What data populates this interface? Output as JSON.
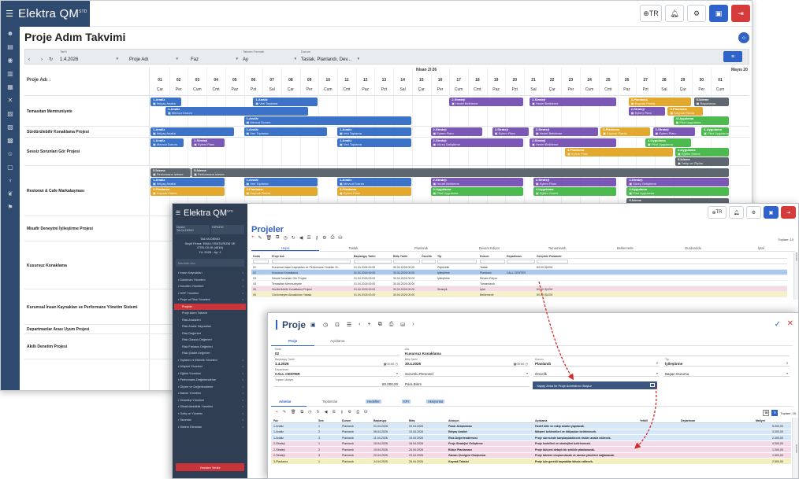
{
  "app": {
    "name": "Elektra QM",
    "sup": "STD"
  },
  "topbar": {
    "language": "TR"
  },
  "page_title": "Proje Adım Takvimi",
  "filters": {
    "date_label": "Tarih",
    "date_value": "1.4.2026",
    "project_label": "Proje Adı",
    "phase_label": "Faz",
    "calendar_label": "Takvim Formatı",
    "calendar_value": "Ay",
    "status_label": "Durum",
    "status_value": "Taslak, Planlandı, Dev..."
  },
  "gantt": {
    "column_header": "Proje Adı",
    "month_1": "Nisan 2026",
    "month_2": "Mayıs 20",
    "days": [
      "01",
      "02",
      "03",
      "04",
      "05",
      "06",
      "07",
      "08",
      "09",
      "10",
      "11",
      "12",
      "13",
      "14",
      "15",
      "16",
      "17",
      "18",
      "19",
      "20",
      "21",
      "22",
      "23",
      "24",
      "25",
      "26",
      "27",
      "28",
      "29",
      "30",
      "01"
    ],
    "dows": [
      "Çar",
      "Per",
      "Cum",
      "Cmt",
      "Paz",
      "Pzt",
      "Sal",
      "Çar",
      "Per",
      "Cum",
      "Cmt",
      "Paz",
      "Pzt",
      "Sal",
      "Çar",
      "Per",
      "Cum",
      "Cmt",
      "Paz",
      "Pzt",
      "Sal",
      "Çar",
      "Per",
      "Cum",
      "Cmt",
      "Paz",
      "Pzt",
      "Sal",
      "Çar",
      "Per",
      "Cum"
    ],
    "rows": [
      "Teması̇tan Memnuniyete",
      "Sürdürülebilir Konaklama Projesi",
      "Sessiz Sorunları Gör Projesi",
      "Restoran & Cafe Markalaşması",
      "Misafir Deneyimi İyileştirme Projesi",
      "Kusursuz Konaklama",
      "Kurumsal İnsan Kaynakları ve Performans Yönetim Sistemi",
      "Departmanlar Arası Uyum Projesi",
      "Akıllı Denetim Projesi"
    ],
    "bars": {
      "analiz": "1-Analiz",
      "strateji": "2-Strateji",
      "planlama": "3-Planlama",
      "uygulama": "4-Uygulama",
      "izleme": "5-İzleme",
      "sub_ihtiyac": "İhtiyaç Analizi",
      "sub_veri": "Veri Toplama",
      "sub_mevcut": "Mevcut Durum",
      "sub_hedef": "Hedef Belirleme",
      "sub_kaynak": "Kaynak Planla",
      "sub_eylem": "Eylem Planı",
      "sub_egitim": "Eğitim Süreci",
      "sub_takip": "Takip ve Ölçüm",
      "sub_perf": "Performans İzleme",
      "sub_rapor": "Raporlama",
      "sub_pilot": "Pilot Uygulama",
      "sub_surec": "Süreç Geliştirme"
    }
  },
  "win2": {
    "side": {
      "term_label": "Dönem",
      "term_value": "TALYA DEMO",
      "tenant_label": "TÜRKİYE",
      "company_lines": [
        "TALYA DEMO",
        "Seçili Firma: EMA LYRATURİZM VE",
        "OTELCİLİK (4616)",
        "Yıl: 2026 - Ay: 1"
      ],
      "search_placeholder": "Menüde Ara",
      "menu": [
        {
          "label": "İnsan Kaynakları",
          "sub": false
        },
        {
          "label": "Doküman Yönetimi",
          "sub": false
        },
        {
          "label": "Denetim Yönetimi",
          "sub": false
        },
        {
          "label": "DÖF Yönetimi",
          "sub": false
        },
        {
          "label": "Proje ve Risk Yönetimi",
          "sub": false
        },
        {
          "label": "Projeler",
          "sub": true,
          "active": true
        },
        {
          "label": "Proje Adım Takvimi",
          "sub": true
        },
        {
          "label": "Risk Analizleri",
          "sub": true
        },
        {
          "label": "Risk Analiz Sayısalları",
          "sub": true
        },
        {
          "label": "Risk Değerleri",
          "sub": true
        },
        {
          "label": "Risk Olasılık Değerleri",
          "sub": true
        },
        {
          "label": "Risk Frekans Değerleri",
          "sub": true
        },
        {
          "label": "Risk Şiddet Değerleri",
          "sub": true
        },
        {
          "label": "Toplantı ve Etkinlik Yönetimi",
          "sub": false
        },
        {
          "label": "Müşteri Yönetimi",
          "sub": false
        },
        {
          "label": "Eğitim Yönetimi",
          "sub": false
        },
        {
          "label": "Performans Değerlendirme",
          "sub": false
        },
        {
          "label": "Ölçme ve Değerlendirme",
          "sub": false
        },
        {
          "label": "Bakım Yönetimi",
          "sub": false
        },
        {
          "label": "Tedarikçi Yönetimi",
          "sub": false
        },
        {
          "label": "Sürdürülebilirlik Yönetimi",
          "sub": false
        },
        {
          "label": "Geliş ve Yönetim",
          "sub": false
        },
        {
          "label": "Tanımlar",
          "sub": false
        },
        {
          "label": "Sistem Ekranları",
          "sub": false
        }
      ],
      "exit_label": "Yeniden Yenile"
    },
    "title": "Projeler",
    "total": "Toplam: 10",
    "tabs": [
      "Hepsi",
      "Taslak",
      "Planlandı",
      "Devam Ediyor",
      "Tamamlandı",
      "Beklemede",
      "Durduruldu",
      "İptal"
    ],
    "columns": [
      "Kodu",
      "Proje Adı",
      "Başlangıç Tarihi",
      "Bitiş Tarihi",
      "Öncelik",
      "Tip",
      "Durum",
      "Departman",
      "Gerçekle Parametr"
    ],
    "rows": [
      {
        "code": "01",
        "name": "Kurumsal İnsan Kaynakları ve Performans Yönetim Si...",
        "start": "01.04.2026 00:00",
        "end": "30.04.2026 00:00",
        "priority": "",
        "type": "Ölçülebilir",
        "status": "Taslak",
        "dept": "",
        "param": "80,00 İŞLEM"
      },
      {
        "code": "02",
        "name": "Kusursuz Konaklama",
        "start": "01.04.2026 00:00",
        "end": "30.04.2026 00:00",
        "priority": "",
        "type": "İyileştirme",
        "status": "Planlandı",
        "dept": "CALL CENTER",
        "param": ""
      },
      {
        "code": "03",
        "name": "Sessiz Sorunları Gör Projesi",
        "start": "01.04.2026 00:00",
        "end": "30.04.2026 00:00",
        "priority": "",
        "type": "İyileştirme",
        "status": "Devam Ediyor",
        "dept": "",
        "param": ""
      },
      {
        "code": "04",
        "name": "Temasitan Memnuniyete",
        "start": "01.04.2026 00:00",
        "end": "30.04.2026 00:00",
        "priority": "",
        "type": "",
        "status": "Tamamlandı",
        "dept": "",
        "param": ""
      },
      {
        "code": "05",
        "name": "Sürdürülebilir Konaklama Projesi",
        "start": "01.04.2026 00:00",
        "end": "30.04.2026 00:00",
        "priority": "",
        "type": "Stratejik",
        "status": "İptal",
        "dept": "",
        "param": "80,00 İŞLEM"
      },
      {
        "code": "06",
        "name": "Görünmeyen Aksaklıkları Yakala",
        "start": "01.04.2026 00:00",
        "end": "30.04.2026 00:00",
        "priority": "",
        "type": "",
        "status": "Beklemede",
        "dept": "",
        "param": "80,00 İŞLEM"
      }
    ],
    "vscroll_label": "Kolonlar"
  },
  "win3": {
    "title": "Proje",
    "tabs": [
      "Proje",
      "Açıklama"
    ],
    "fields": {
      "code_label": "Kodu",
      "code_value": "02",
      "name_label": "Adı",
      "name_value": "Kusursuz Konaklama",
      "start_label": "Başlangıç Tarihi",
      "start_value": "1.4.2026",
      "start_time": "00:00",
      "end_label": "Bitiş Tarihi",
      "end_value": "30.4.2026",
      "end_time": "00:00",
      "status_label": "Durum",
      "status_value": "Planlandı",
      "type_label": "Tip",
      "type_value": "İyileştirme",
      "dept_label": "Departman",
      "dept_value": "CALL CENTER",
      "resp_value": "Sorumlu Personel",
      "priority_value": "Öncelik",
      "state_value": "Başarı Durumu",
      "budget_label": "Toplam Maliyet",
      "budget_value": "80.000,00",
      "currency_value": "Para Birim"
    },
    "action_button": "Yapay Zeka İle Proje Adımlarını Oluştur",
    "tabs2": [
      "Adımlar",
      "Toplantılar",
      "Hedefler",
      "KPI",
      "Aksiyonlar"
    ],
    "total": "Toplam: 15",
    "columns": [
      "Faz",
      "Sıra",
      "Durum",
      "Başlangıç",
      "Bitiş",
      "Aksiyon",
      "Açıklama",
      "Yetkili",
      "Departman",
      "Maliyet"
    ],
    "rows": [
      {
        "phase": "1-Analiz",
        "seq": "1",
        "status": "Planlandı",
        "start": "01.04.2026",
        "end": "03.04.2026",
        "action": "Pazar Araştırması",
        "desc": "Hedef kitle ve rakip analizi yapılacak.",
        "cost": "5.000,00",
        "cls": "r-blue"
      },
      {
        "phase": "1-Analiz",
        "seq": "2",
        "status": "Planlandı",
        "start": "06.04.2026",
        "end": "10.04.2026",
        "action": "İhtiyaç Analizi",
        "desc": "Müşteri beklentileri ve ihtiyaçları belirlenecek.",
        "cost": "3.000,00",
        "cls": "r-blue"
      },
      {
        "phase": "1-Analiz",
        "seq": "3",
        "status": "Planlandı",
        "start": "11.04.2026",
        "end": "15.04.2026",
        "action": "Risk Değerlendirmesi",
        "desc": "Proje sürecinde karşılaşılabilecek riskler analiz edilecek.",
        "cost": "2.000,00",
        "cls": "r-blue"
      },
      {
        "phase": "2-Strateji",
        "seq": "1",
        "status": "Planlandı",
        "start": "15.04.2026",
        "end": "18.04.2026",
        "action": "Proje Stratejisi Geliştirme",
        "desc": "Proje hedefleri ve stratejileri belirlenecek.",
        "cost": "4.000,00",
        "cls": "r-pink"
      },
      {
        "phase": "2-Strateji",
        "seq": "2",
        "status": "Planlandı",
        "start": "19.04.2026",
        "end": "24.04.2026",
        "action": "Bütçe Planlaması",
        "desc": "Proje bütçesi detaylı bir şekilde planlanacak.",
        "cost": "1.000,00",
        "cls": "r-pink"
      },
      {
        "phase": "2-Strateji",
        "seq": "3",
        "status": "Planlandı",
        "start": "22.04.2026",
        "end": "23.04.2026",
        "action": "Zaman Çizelgesi Oluşturma",
        "desc": "Proje takvimi oluşturulacak ve zaman yönetimi sağlanacak.",
        "cost": "1.500,00",
        "cls": "r-pink"
      },
      {
        "phase": "3-Planlama",
        "seq": "1",
        "status": "Planlandı",
        "start": "24.04.2026",
        "end": "26.04.2026",
        "action": "Kaynak Tahsisi",
        "desc": "Proje için gerekli kaynaklar tahsis edilecek.",
        "cost": "2.500,00",
        "cls": "r-yellow"
      }
    ],
    "vscroll_label": "Kolonlar"
  },
  "colors": {
    "analiz": "#3c73c9",
    "strateji": "#7b58b6",
    "planlama": "#e2a92e",
    "uygulama": "#4cba4f",
    "izleme": "#5e6770",
    "sidebar": "#2f4a6f",
    "accent": "#2f63c9",
    "danger": "#d63b3b"
  }
}
